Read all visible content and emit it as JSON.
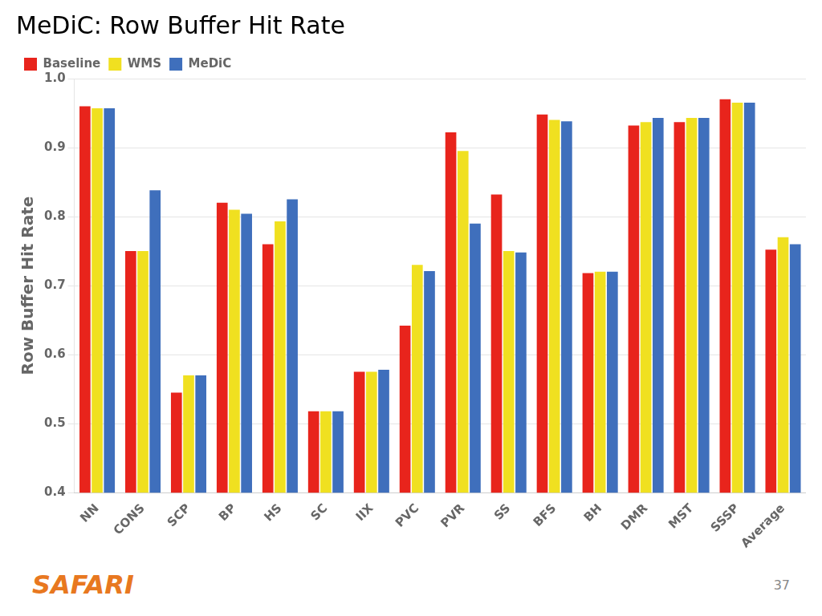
{
  "chart_data": {
    "type": "bar",
    "title": "MeDiC: Row Buffer Hit Rate",
    "ylabel": "Row Buffer Hit Rate",
    "categories": [
      "NN",
      "CONS",
      "SCP",
      "BP",
      "HS",
      "SC",
      "IIX",
      "PVC",
      "PVR",
      "SS",
      "BFS",
      "BH",
      "DMR",
      "MST",
      "SSSP",
      "Average"
    ],
    "series": [
      {
        "name": "Baseline",
        "color": "#E8241C",
        "values": [
          0.96,
          0.75,
          0.545,
          0.82,
          0.76,
          0.518,
          0.575,
          0.642,
          0.922,
          0.832,
          0.948,
          0.718,
          0.932,
          0.937,
          0.97,
          0.752
        ]
      },
      {
        "name": "WMS",
        "color": "#F0E020",
        "values": [
          0.957,
          0.75,
          0.57,
          0.81,
          0.793,
          0.518,
          0.575,
          0.73,
          0.895,
          0.75,
          0.94,
          0.72,
          0.937,
          0.943,
          0.965,
          0.77
        ]
      },
      {
        "name": "MeDiC",
        "color": "#3F6FBC",
        "values": [
          0.957,
          0.838,
          0.57,
          0.804,
          0.825,
          0.518,
          0.578,
          0.721,
          0.79,
          0.748,
          0.938,
          0.72,
          0.943,
          0.943,
          0.965,
          0.76
        ]
      }
    ],
    "ylim": [
      0.4,
      1.0
    ],
    "yticks": [
      0.4,
      0.5,
      0.6,
      0.7,
      0.8,
      0.9,
      {
        "value": 1.0,
        "label": "1.0"
      }
    ],
    "grid": true,
    "legend": "upper left",
    "annotations": [
      {
        "text": "SAFARI",
        "color": "#E87820"
      },
      {
        "text": "37",
        "color": "#888888"
      }
    ]
  }
}
